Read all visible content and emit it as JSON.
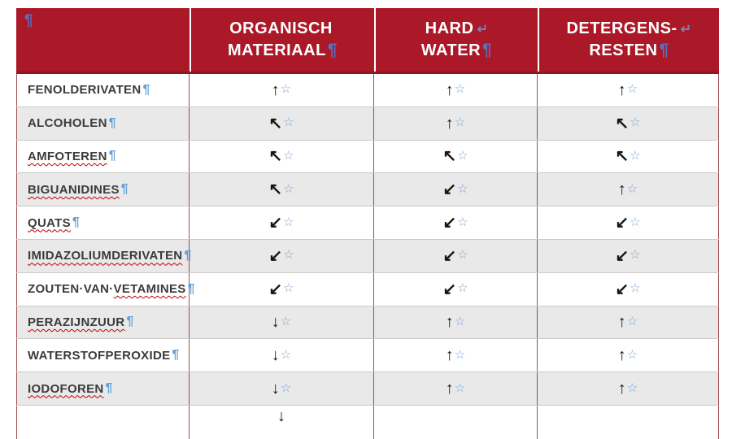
{
  "marks": {
    "pilcrow": "¶",
    "linebreak": "↵",
    "star": "☆"
  },
  "header": {
    "corner_mark": "¶",
    "columns": [
      {
        "line1": "ORGANISCH",
        "line1_mark": "",
        "line2": "MATERIAAL",
        "line2_mark": "¶"
      },
      {
        "line1": "HARD",
        "line1_mark": "↵",
        "line2": "WATER",
        "line2_mark": "¶"
      },
      {
        "line1": "DETERGENS-",
        "line1_mark": "↵",
        "line2": "RESTEN",
        "line2_mark": "¶"
      }
    ]
  },
  "rows": [
    {
      "label_plain": "FENOLDERIVATEN",
      "label_wavy": "",
      "cells": [
        "↑",
        "↑",
        "↑"
      ]
    },
    {
      "label_plain": "ALCOHOLEN",
      "label_wavy": "",
      "cells": [
        "↖",
        "↑",
        "↖"
      ]
    },
    {
      "label_plain": "",
      "label_wavy": "AMFOTEREN",
      "cells": [
        "↖",
        "↖",
        "↖"
      ]
    },
    {
      "label_plain": "",
      "label_wavy": "BIGUANIDINES",
      "cells": [
        "↖",
        "↙",
        "↑"
      ]
    },
    {
      "label_plain": "",
      "label_wavy": "QUATS",
      "cells": [
        "↙",
        "↙",
        "↙"
      ]
    },
    {
      "label_plain": "",
      "label_wavy": "IMIDAZOLIUMDERIVATEN",
      "cells": [
        "↙",
        "↙",
        "↙"
      ]
    },
    {
      "label_plain": "ZOUTEN·VAN·",
      "label_wavy": "VETAMINES",
      "cells": [
        "↙",
        "↙",
        "↙"
      ]
    },
    {
      "label_plain": "",
      "label_wavy": "PERAZIJNZUUR",
      "cells": [
        "↓",
        "↑",
        "↑"
      ]
    },
    {
      "label_plain": "WATERSTOFPEROXIDE",
      "label_wavy": "",
      "cells": [
        "↓",
        "↑",
        "↑"
      ]
    },
    {
      "label_plain": "",
      "label_wavy": "IODOFOREN",
      "cells": [
        "↓",
        "↑",
        "↑"
      ]
    }
  ],
  "partial_row": {
    "cells": [
      "↓",
      "",
      ""
    ]
  },
  "colors": {
    "header_bg": "#AB1828",
    "header_text": "#FFFFFF",
    "row_alt_bg": "#E9E9E9",
    "label_text": "#3B3B3B",
    "arrow": "#151515",
    "star_blue": "#7BA7D7",
    "pilcrow_blue": "#64A0D8",
    "header_mark_blue": "#5B6FBF",
    "squiggle_red": "#C00000",
    "grid_red": "#A04A52",
    "grid_gray": "#CACACA"
  }
}
